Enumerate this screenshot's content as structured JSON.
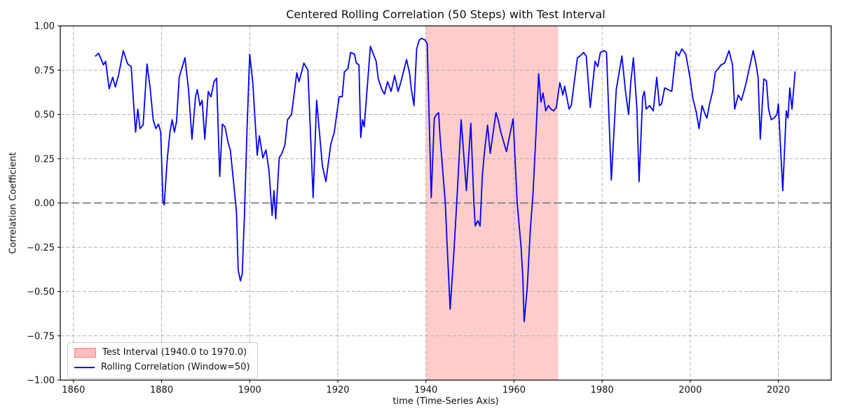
{
  "title": "Centered Rolling Correlation (50 Steps) with Test Interval",
  "legend": {
    "position": "lower left",
    "items": [
      {
        "swatch": "band",
        "label": "Test Interval (1940.0 to 1970.0)"
      },
      {
        "swatch": "line",
        "label": "Rolling Correlation (Window=50)"
      }
    ]
  },
  "chart_data": {
    "type": "line",
    "title": "Centered Rolling Correlation (50 Steps) with Test Interval",
    "xlabel": "time (Time-Series Axis)",
    "ylabel": "Correlation Coefficient",
    "xlim": [
      1857,
      2032
    ],
    "ylim": [
      -1.0,
      1.0
    ],
    "xticks": [
      1860,
      1880,
      1900,
      1920,
      1940,
      1960,
      1980,
      2000,
      2020
    ],
    "yticks": [
      -1.0,
      -0.75,
      -0.5,
      -0.25,
      0.0,
      0.25,
      0.5,
      0.75,
      1.0
    ],
    "grid": true,
    "zero_line": true,
    "colors": {
      "line": "#0000ff",
      "band": "#ff0000",
      "band_alpha": 0.2,
      "zero_line": "#808080",
      "grid": "#b0b0b0",
      "spine": "#000000",
      "text": "#111111",
      "background": "#ffffff"
    },
    "test_interval": {
      "start": 1940.0,
      "end": 1970.0,
      "label": "Test Interval (1940.0 to 1970.0)"
    },
    "series": [
      {
        "name": "Rolling Correlation (Window=50)",
        "window": 50,
        "points": [
          [
            1865.0,
            0.83
          ],
          [
            1865.7,
            0.845
          ],
          [
            1866.3,
            0.81
          ],
          [
            1866.8,
            0.78
          ],
          [
            1867.3,
            0.8
          ],
          [
            1868.1,
            0.645
          ],
          [
            1868.9,
            0.71
          ],
          [
            1869.5,
            0.655
          ],
          [
            1870.3,
            0.73
          ],
          [
            1871.3,
            0.86
          ],
          [
            1872.3,
            0.785
          ],
          [
            1873.1,
            0.77
          ],
          [
            1873.7,
            0.54
          ],
          [
            1874.1,
            0.4
          ],
          [
            1874.6,
            0.53
          ],
          [
            1875.1,
            0.42
          ],
          [
            1875.8,
            0.44
          ],
          [
            1876.7,
            0.785
          ],
          [
            1877.4,
            0.65
          ],
          [
            1878.1,
            0.47
          ],
          [
            1878.7,
            0.42
          ],
          [
            1879.3,
            0.445
          ],
          [
            1879.8,
            0.4
          ],
          [
            1880.3,
            0.01
          ],
          [
            1880.6,
            -0.01
          ],
          [
            1881.3,
            0.25
          ],
          [
            1881.9,
            0.4
          ],
          [
            1882.4,
            0.47
          ],
          [
            1882.9,
            0.4
          ],
          [
            1883.4,
            0.46
          ],
          [
            1884.0,
            0.71
          ],
          [
            1885.3,
            0.82
          ],
          [
            1886.1,
            0.645
          ],
          [
            1886.9,
            0.36
          ],
          [
            1887.7,
            0.6
          ],
          [
            1888.1,
            0.64
          ],
          [
            1888.7,
            0.55
          ],
          [
            1889.2,
            0.58
          ],
          [
            1889.8,
            0.36
          ],
          [
            1890.6,
            0.63
          ],
          [
            1891.2,
            0.6
          ],
          [
            1891.9,
            0.685
          ],
          [
            1892.5,
            0.705
          ],
          [
            1893.2,
            0.15
          ],
          [
            1893.8,
            0.445
          ],
          [
            1894.4,
            0.43
          ],
          [
            1895.1,
            0.34
          ],
          [
            1895.6,
            0.3
          ],
          [
            1896.3,
            0.13
          ],
          [
            1897.0,
            -0.05
          ],
          [
            1897.4,
            -0.38
          ],
          [
            1897.9,
            -0.44
          ],
          [
            1898.3,
            -0.4
          ],
          [
            1898.8,
            -0.08
          ],
          [
            1899.4,
            0.42
          ],
          [
            1900.0,
            0.84
          ],
          [
            1900.7,
            0.68
          ],
          [
            1901.7,
            0.27
          ],
          [
            1902.2,
            0.38
          ],
          [
            1903.0,
            0.255
          ],
          [
            1903.7,
            0.3
          ],
          [
            1904.4,
            0.18
          ],
          [
            1905.1,
            -0.07
          ],
          [
            1905.5,
            0.07
          ],
          [
            1905.9,
            -0.09
          ],
          [
            1906.7,
            0.255
          ],
          [
            1907.3,
            0.28
          ],
          [
            1908.0,
            0.33
          ],
          [
            1908.6,
            0.47
          ],
          [
            1909.5,
            0.5
          ],
          [
            1910.7,
            0.735
          ],
          [
            1911.2,
            0.685
          ],
          [
            1912.3,
            0.79
          ],
          [
            1913.2,
            0.75
          ],
          [
            1914.4,
            0.03
          ],
          [
            1915.2,
            0.58
          ],
          [
            1916.5,
            0.21
          ],
          [
            1917.3,
            0.12
          ],
          [
            1918.4,
            0.33
          ],
          [
            1919.2,
            0.4
          ],
          [
            1920.3,
            0.6
          ],
          [
            1921.0,
            0.6
          ],
          [
            1921.5,
            0.74
          ],
          [
            1922.3,
            0.76
          ],
          [
            1922.9,
            0.85
          ],
          [
            1923.8,
            0.84
          ],
          [
            1924.2,
            0.79
          ],
          [
            1924.8,
            0.78
          ],
          [
            1925.2,
            0.37
          ],
          [
            1925.6,
            0.47
          ],
          [
            1926.0,
            0.43
          ],
          [
            1927.4,
            0.885
          ],
          [
            1928.7,
            0.8
          ],
          [
            1929.2,
            0.7
          ],
          [
            1930.0,
            0.64
          ],
          [
            1930.6,
            0.615
          ],
          [
            1931.3,
            0.685
          ],
          [
            1932.1,
            0.63
          ],
          [
            1932.9,
            0.72
          ],
          [
            1933.7,
            0.63
          ],
          [
            1934.5,
            0.7
          ],
          [
            1935.6,
            0.81
          ],
          [
            1936.3,
            0.73
          ],
          [
            1936.7,
            0.64
          ],
          [
            1937.3,
            0.55
          ],
          [
            1937.9,
            0.87
          ],
          [
            1938.5,
            0.92
          ],
          [
            1939.0,
            0.93
          ],
          [
            1939.8,
            0.92
          ],
          [
            1940.3,
            0.9
          ],
          [
            1941.2,
            0.03
          ],
          [
            1941.9,
            0.48
          ],
          [
            1942.4,
            0.5
          ],
          [
            1942.9,
            0.51
          ],
          [
            1943.2,
            0.38
          ],
          [
            1944.4,
            0.0
          ],
          [
            1944.8,
            -0.23
          ],
          [
            1945.5,
            -0.6
          ],
          [
            1946.3,
            -0.3
          ],
          [
            1947.0,
            0.0
          ],
          [
            1948.0,
            0.47
          ],
          [
            1949.2,
            0.07
          ],
          [
            1950.2,
            0.45
          ],
          [
            1950.9,
            0.0
          ],
          [
            1951.2,
            -0.13
          ],
          [
            1951.8,
            -0.1
          ],
          [
            1952.3,
            -0.13
          ],
          [
            1952.8,
            0.15
          ],
          [
            1953.3,
            0.29
          ],
          [
            1954.0,
            0.44
          ],
          [
            1954.6,
            0.28
          ],
          [
            1955.9,
            0.51
          ],
          [
            1956.4,
            0.47
          ],
          [
            1957.0,
            0.4
          ],
          [
            1958.3,
            0.29
          ],
          [
            1958.8,
            0.355
          ],
          [
            1959.8,
            0.475
          ],
          [
            1960.7,
            0.01
          ],
          [
            1961.6,
            -0.25
          ],
          [
            1962.0,
            -0.42
          ],
          [
            1962.3,
            -0.67
          ],
          [
            1963.0,
            -0.48
          ],
          [
            1963.7,
            -0.15
          ],
          [
            1964.3,
            0.05
          ],
          [
            1965.0,
            0.4
          ],
          [
            1965.6,
            0.73
          ],
          [
            1966.1,
            0.57
          ],
          [
            1966.6,
            0.62
          ],
          [
            1967.2,
            0.52
          ],
          [
            1967.8,
            0.55
          ],
          [
            1968.4,
            0.53
          ],
          [
            1969.0,
            0.52
          ],
          [
            1969.6,
            0.54
          ],
          [
            1970.4,
            0.68
          ],
          [
            1971.1,
            0.61
          ],
          [
            1971.5,
            0.66
          ],
          [
            1972.5,
            0.53
          ],
          [
            1973.0,
            0.55
          ],
          [
            1974.4,
            0.82
          ],
          [
            1975.0,
            0.83
          ],
          [
            1975.8,
            0.85
          ],
          [
            1976.4,
            0.83
          ],
          [
            1977.3,
            0.54
          ],
          [
            1978.4,
            0.8
          ],
          [
            1979.0,
            0.77
          ],
          [
            1979.6,
            0.85
          ],
          [
            1980.5,
            0.86
          ],
          [
            1981.0,
            0.85
          ],
          [
            1982.1,
            0.13
          ],
          [
            1983.2,
            0.64
          ],
          [
            1984.5,
            0.83
          ],
          [
            1985.3,
            0.63
          ],
          [
            1986.0,
            0.5
          ],
          [
            1986.5,
            0.68
          ],
          [
            1987.1,
            0.82
          ],
          [
            1987.9,
            0.53
          ],
          [
            1988.4,
            0.12
          ],
          [
            1989.2,
            0.6
          ],
          [
            1989.6,
            0.63
          ],
          [
            1990.0,
            0.53
          ],
          [
            1990.8,
            0.55
          ],
          [
            1991.6,
            0.52
          ],
          [
            1992.4,
            0.71
          ],
          [
            1993.0,
            0.55
          ],
          [
            1993.5,
            0.56
          ],
          [
            1994.2,
            0.65
          ],
          [
            1995.0,
            0.64
          ],
          [
            1995.8,
            0.63
          ],
          [
            1996.8,
            0.855
          ],
          [
            1997.4,
            0.83
          ],
          [
            1998.1,
            0.87
          ],
          [
            1999.0,
            0.84
          ],
          [
            2000.0,
            0.7
          ],
          [
            2000.6,
            0.59
          ],
          [
            2001.4,
            0.51
          ],
          [
            2002.0,
            0.42
          ],
          [
            2002.7,
            0.55
          ],
          [
            2003.4,
            0.5
          ],
          [
            2003.8,
            0.48
          ],
          [
            2004.4,
            0.56
          ],
          [
            2005.1,
            0.63
          ],
          [
            2005.7,
            0.74
          ],
          [
            2006.4,
            0.76
          ],
          [
            2007.0,
            0.78
          ],
          [
            2007.8,
            0.79
          ],
          [
            2008.8,
            0.86
          ],
          [
            2009.6,
            0.78
          ],
          [
            2010.1,
            0.53
          ],
          [
            2010.9,
            0.61
          ],
          [
            2011.6,
            0.58
          ],
          [
            2012.2,
            0.63
          ],
          [
            2012.7,
            0.68
          ],
          [
            2013.3,
            0.75
          ],
          [
            2014.3,
            0.86
          ],
          [
            2014.9,
            0.79
          ],
          [
            2015.4,
            0.71
          ],
          [
            2015.9,
            0.36
          ],
          [
            2016.7,
            0.7
          ],
          [
            2017.3,
            0.69
          ],
          [
            2017.8,
            0.53
          ],
          [
            2018.4,
            0.47
          ],
          [
            2019.0,
            0.48
          ],
          [
            2019.7,
            0.5
          ],
          [
            2020.0,
            0.56
          ],
          [
            2021.0,
            0.07
          ],
          [
            2021.8,
            0.52
          ],
          [
            2022.2,
            0.48
          ],
          [
            2022.6,
            0.65
          ],
          [
            2023.1,
            0.53
          ],
          [
            2023.8,
            0.74
          ]
        ]
      }
    ]
  }
}
